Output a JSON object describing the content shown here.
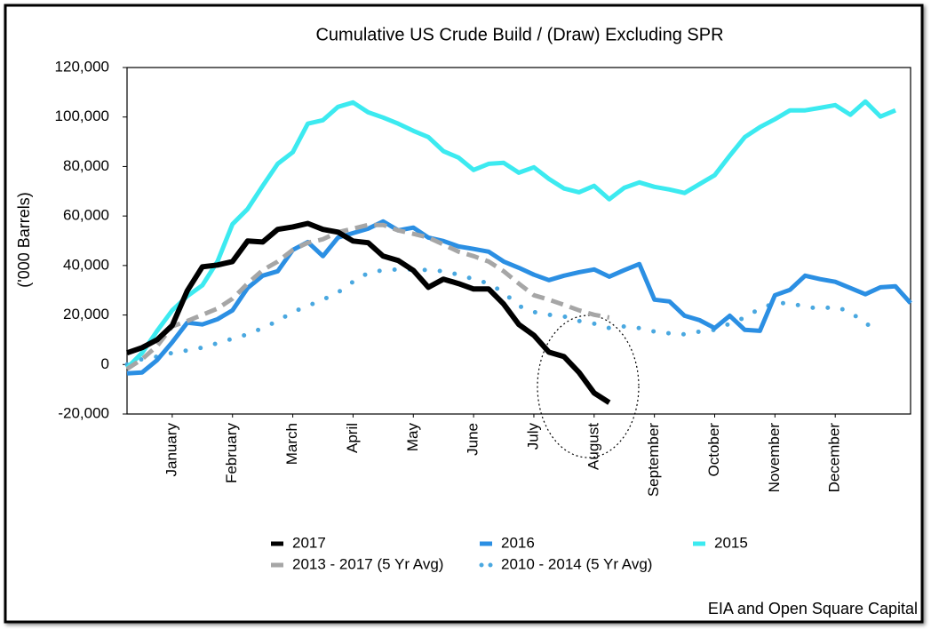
{
  "chart_data": {
    "type": "line",
    "title": "Cumulative US Crude Build / (Draw) Excluding SPR",
    "y_label": "('000 Barrels)",
    "source": "EIA and Open Square Capital",
    "x": [
      1,
      2,
      3,
      4,
      5,
      6,
      7,
      8,
      9,
      10,
      11,
      12,
      13,
      14,
      15,
      16,
      17,
      18,
      19,
      20,
      21,
      22,
      23,
      24,
      25,
      26,
      27,
      28,
      29,
      30,
      31,
      32,
      33,
      34,
      35,
      36,
      37,
      38,
      39,
      40,
      41,
      42,
      43,
      44,
      45,
      46,
      47,
      48,
      49,
      50,
      51,
      52,
      53
    ],
    "xlim": [
      1,
      53
    ],
    "xticks": [
      {
        "value": 4,
        "label": "January"
      },
      {
        "value": 8,
        "label": "February"
      },
      {
        "value": 12,
        "label": "March"
      },
      {
        "value": 16,
        "label": "April"
      },
      {
        "value": 20,
        "label": "May"
      },
      {
        "value": 24,
        "label": "June"
      },
      {
        "value": 28,
        "label": "July"
      },
      {
        "value": 32,
        "label": "August"
      },
      {
        "value": 36,
        "label": "September"
      },
      {
        "value": 40,
        "label": "October"
      },
      {
        "value": 44,
        "label": "November"
      },
      {
        "value": 48,
        "label": "December"
      }
    ],
    "ylim": [
      -20000,
      120000
    ],
    "yticks": [
      {
        "value": -20000,
        "label": "-20,000"
      },
      0,
      {
        "value": 20000,
        "label": "20,000"
      },
      {
        "value": 40000,
        "label": "40,000"
      },
      {
        "value": 60000,
        "label": "60,000"
      },
      {
        "value": 80000,
        "label": "80,000"
      },
      {
        "value": 100000,
        "label": "100,000"
      },
      {
        "value": 120000,
        "label": "120,000"
      }
    ],
    "series": [
      {
        "name": "2017",
        "color": "#000000",
        "style": "solid",
        "values": [
          4700,
          6800,
          10000,
          15800,
          29800,
          39500,
          40200,
          41600,
          49900,
          49500,
          54600,
          55600,
          57000,
          54600,
          53500,
          49900,
          49200,
          43800,
          42000,
          38000,
          31200,
          34500,
          32700,
          30500,
          30500,
          24400,
          16200,
          11800,
          5000,
          3200,
          -3200,
          -11500,
          -15400,
          null,
          null,
          null,
          null,
          null,
          null,
          null,
          null,
          null,
          null,
          null,
          null,
          null,
          null,
          null,
          null,
          null,
          null,
          null,
          null
        ]
      },
      {
        "name": "2016",
        "color": "#2b8fe3",
        "style": "solid",
        "values": [
          -3600,
          -3200,
          1800,
          9000,
          16900,
          16200,
          18300,
          21900,
          30900,
          35900,
          37700,
          46300,
          49500,
          43800,
          51300,
          53100,
          54900,
          57800,
          54200,
          55300,
          51300,
          49900,
          47700,
          46700,
          45600,
          41600,
          39100,
          36300,
          34100,
          35900,
          37300,
          38400,
          35500,
          38100,
          40600,
          26200,
          25500,
          19700,
          17900,
          14700,
          19700,
          14000,
          13600,
          28000,
          30200,
          35900,
          34500,
          33400,
          30900,
          28400,
          31200,
          31600,
          24800
        ]
      },
      {
        "name": "2015",
        "color": "#3ceaf0",
        "style": "solid",
        "values": [
          -1400,
          4700,
          13600,
          21900,
          27600,
          32000,
          41600,
          56700,
          62800,
          72200,
          81100,
          85800,
          97300,
          98700,
          104100,
          105900,
          101900,
          99800,
          97300,
          94400,
          91900,
          86200,
          83600,
          78600,
          81100,
          81500,
          77500,
          79700,
          75000,
          71100,
          69600,
          72200,
          66800,
          71400,
          73600,
          71800,
          70700,
          69300,
          72900,
          76500,
          84400,
          91900,
          95900,
          99100,
          102700,
          102700,
          103700,
          104800,
          100900,
          106300,
          100200,
          102700,
          null
        ]
      },
      {
        "name": "2013 - 2017 (5 Yr Avg)",
        "color": "#a6a6a6",
        "style": "dashed",
        "values": [
          -1800,
          2200,
          7500,
          15400,
          17600,
          20100,
          22600,
          26600,
          32700,
          38100,
          41600,
          46300,
          49200,
          50600,
          53500,
          54900,
          56400,
          56400,
          54200,
          52800,
          51300,
          48500,
          45600,
          43800,
          41600,
          37700,
          32700,
          28000,
          26200,
          24100,
          21900,
          20100,
          19000,
          null,
          null,
          null,
          null,
          null,
          null,
          null,
          null,
          null,
          null,
          null,
          null,
          null,
          null,
          null,
          null,
          null,
          null,
          null,
          null
        ]
      },
      {
        "name": "2010 - 2014 (5 Yr Avg)",
        "color": "#4aa8e0",
        "style": "dotted",
        "values": [
          0,
          2200,
          3200,
          4700,
          5700,
          6800,
          8600,
          10400,
          12200,
          14700,
          17600,
          21200,
          23700,
          26200,
          29100,
          33400,
          37000,
          38100,
          38400,
          38400,
          38100,
          37700,
          36300,
          34500,
          32700,
          29100,
          23700,
          21200,
          20100,
          19400,
          17600,
          16500,
          14700,
          15400,
          14700,
          13300,
          12600,
          12200,
          13300,
          14000,
          16500,
          19000,
          22600,
          24800,
          24800,
          23300,
          22600,
          23300,
          21200,
          16500,
          14000,
          null,
          null
        ]
      }
    ]
  }
}
